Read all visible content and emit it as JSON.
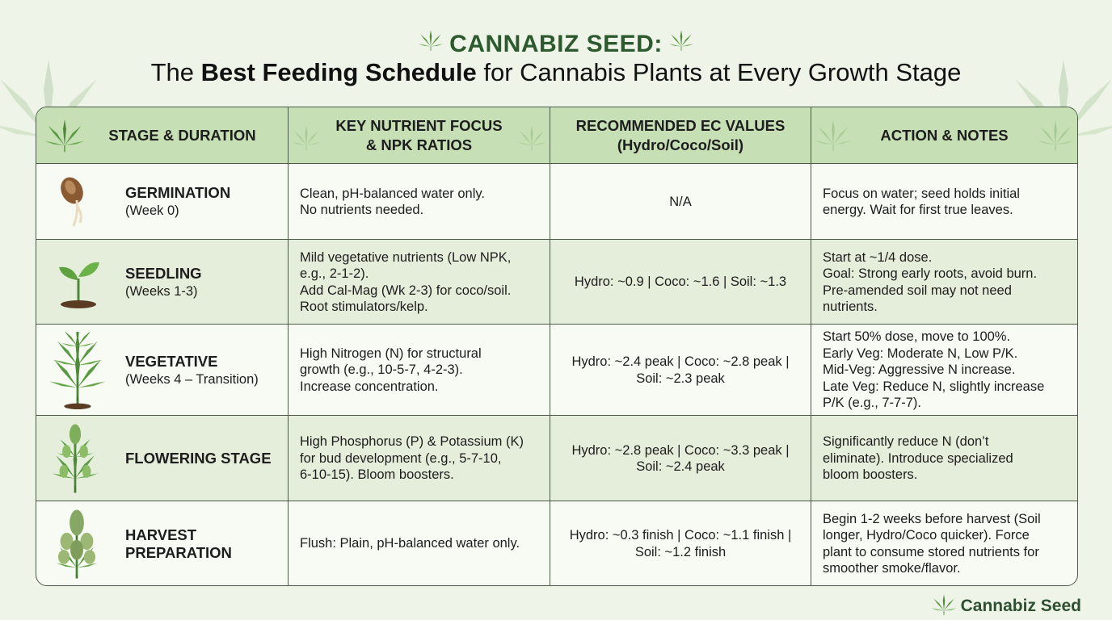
{
  "title": {
    "brand": "CANNABIZ SEED:",
    "subtitle_pre": "The ",
    "subtitle_bold": "Best Feeding Schedule",
    "subtitle_post": " for Cannabis Plants at Every Growth Stage"
  },
  "headers": [
    "STAGE & DURATION",
    "KEY NUTRIENT FOCUS\n& NPK RATIOS",
    "RECOMMENDED EC VALUES\n(Hydro/Coco/Soil)",
    "ACTION & NOTES"
  ],
  "rows": [
    {
      "stage": "GERMINATION",
      "duration": "(Week 0)",
      "icon": "seed-sprout-icon",
      "nutrients": "Clean, pH-balanced water only.\nNo nutrients needed.",
      "ec": "N/A",
      "notes": "Focus on water; seed holds initial\nenergy. Wait for first true leaves."
    },
    {
      "stage": "SEEDLING",
      "duration": "(Weeks 1-3)",
      "icon": "seedling-icon",
      "nutrients": "Mild vegetative nutrients (Low NPK,\ne.g., 2-1-2).\nAdd Cal-Mag (Wk 2-3) for coco/soil.\nRoot stimulators/kelp.",
      "ec": "Hydro: ~0.9 | Coco: ~1.6 | Soil: ~1.3",
      "notes": "Start at ~1/4 dose.\nGoal: Strong early roots, avoid burn.\nPre-amended soil may not need\nnutrients."
    },
    {
      "stage": "VEGETATIVE",
      "duration": "(Weeks 4 – Transition)",
      "icon": "vegetative-plant-icon",
      "nutrients": "High Nitrogen (N) for structural\ngrowth (e.g., 10-5-7, 4-2-3).\nIncrease concentration.",
      "ec": "Hydro: ~2.4 peak | Coco: ~2.8 peak |\nSoil: ~2.3 peak",
      "notes": "Start 50% dose, move to 100%.\nEarly Veg: Moderate N, Low P/K.\nMid-Veg: Aggressive N increase.\nLate Veg: Reduce N, slightly increase\nP/K (e.g., 7-7-7)."
    },
    {
      "stage": "FLOWERING STAGE",
      "duration": "",
      "icon": "flowering-plant-icon",
      "nutrients": "High Phosphorus (P) & Potassium (K)\nfor bud development (e.g., 5-7-10,\n6-10-15). Bloom boosters.",
      "ec": "Hydro: ~2.8 peak | Coco: ~3.3 peak |\nSoil: ~2.4 peak",
      "notes": "Significantly reduce N (don’t\neliminate). Introduce specialized\nbloom boosters."
    },
    {
      "stage": "HARVEST\nPREPARATION",
      "duration": "",
      "icon": "harvest-plant-icon",
      "nutrients": "Flush: Plain, pH-balanced water only.",
      "ec": "Hydro: ~0.3 finish | Coco: ~1.1 finish |\nSoil: ~1.2 finish",
      "notes": "Begin 1-2 weeks before harvest (Soil\nlonger, Hydro/Coco quicker). Force\nplant to consume stored nutrients for\nsmoother smoke/flavor."
    }
  ],
  "footer": "Cannabiz Seed",
  "colors": {
    "brand": "#2c5a2e",
    "header_bg": "#c6dfb5",
    "row_alt": "#e5eedb",
    "row_bg": "#f7fbf3"
  }
}
